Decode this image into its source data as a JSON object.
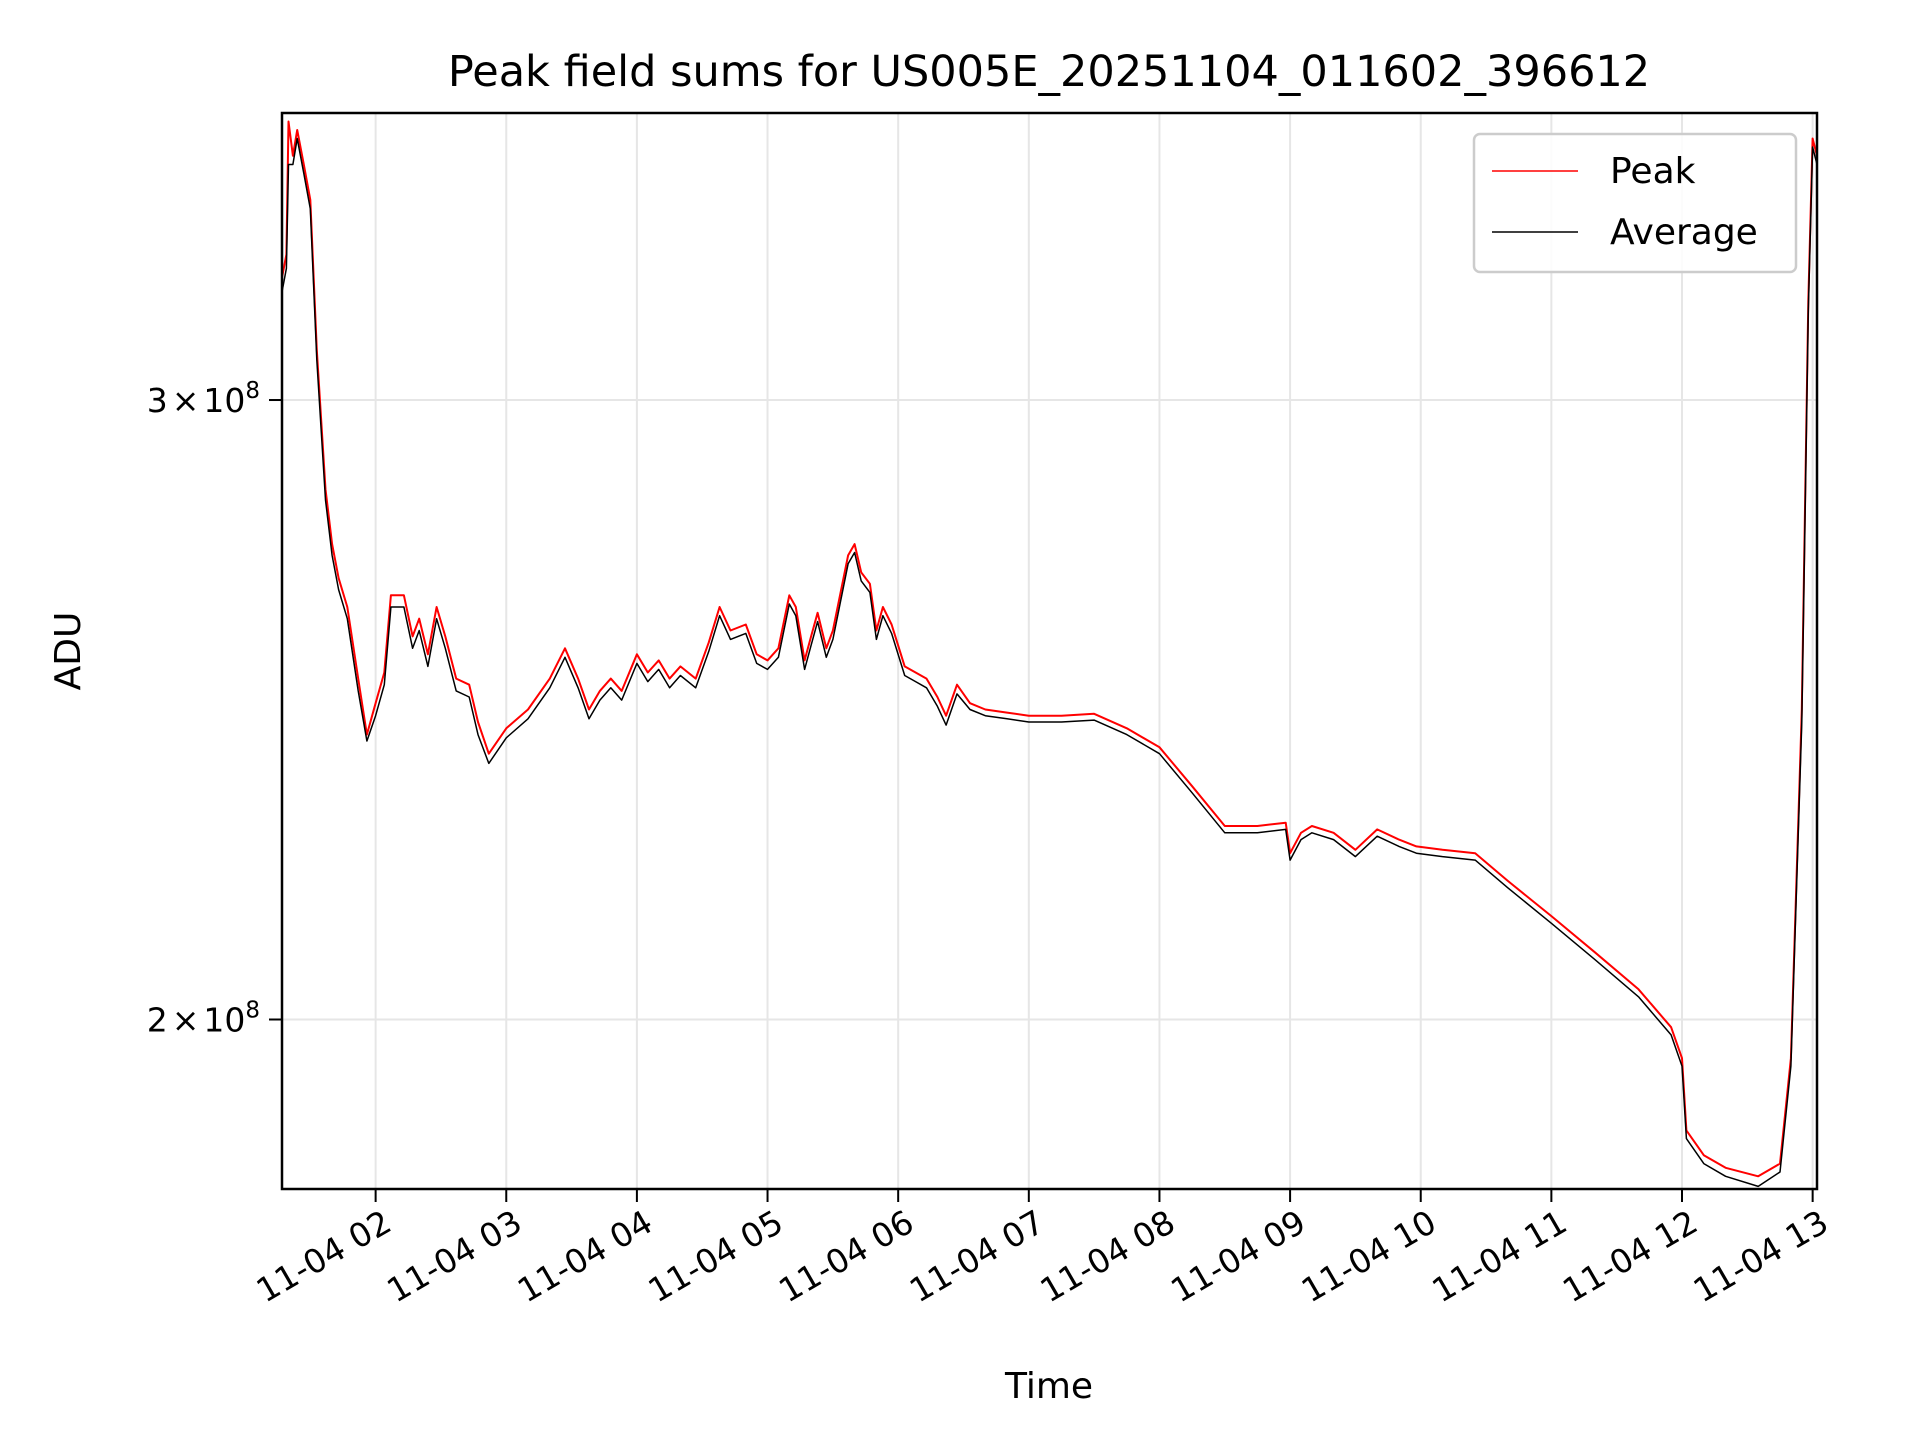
{
  "chart_data": {
    "type": "line",
    "title": "Peak field sums for US005E_20251104_011602_396612",
    "xlabel": "Time",
    "ylabel": "ADU",
    "yscale": "log",
    "xlim": [
      "2025-11-04 01:17",
      "2025-11-04 13:02"
    ],
    "ylim": [
      179000000,
      362000000
    ],
    "grid": true,
    "legend": "top-right",
    "x_ticks": [
      {
        "value": "2025-11-04 02:00",
        "label": "11-04 02"
      },
      {
        "value": "2025-11-04 03:00",
        "label": "11-04 03"
      },
      {
        "value": "2025-11-04 04:00",
        "label": "11-04 04"
      },
      {
        "value": "2025-11-04 05:00",
        "label": "11-04 05"
      },
      {
        "value": "2025-11-04 06:00",
        "label": "11-04 06"
      },
      {
        "value": "2025-11-04 07:00",
        "label": "11-04 07"
      },
      {
        "value": "2025-11-04 08:00",
        "label": "11-04 08"
      },
      {
        "value": "2025-11-04 09:00",
        "label": "11-04 09"
      },
      {
        "value": "2025-11-04 10:00",
        "label": "11-04 10"
      },
      {
        "value": "2025-11-04 11:00",
        "label": "11-04 11"
      },
      {
        "value": "2025-11-04 12:00",
        "label": "11-04 12"
      },
      {
        "value": "2025-11-04 13:00",
        "label": "11-04 13"
      }
    ],
    "y_ticks": [
      {
        "value": 200000000,
        "mantissa": "2",
        "times": "×",
        "base": "10",
        "exp": "8"
      },
      {
        "value": 300000000,
        "mantissa": "3",
        "times": "×",
        "base": "10",
        "exp": "8"
      }
    ],
    "series": [
      {
        "name": "Peak",
        "color": "#ff0000",
        "points": [
          [
            "2025-11-04 01:17",
            325000000
          ],
          [
            "2025-11-04 01:19",
            330000000
          ],
          [
            "2025-11-04 01:20",
            360000000
          ],
          [
            "2025-11-04 01:22",
            352000000
          ],
          [
            "2025-11-04 01:24",
            358000000
          ],
          [
            "2025-11-04 01:27",
            350000000
          ],
          [
            "2025-11-04 01:30",
            342000000
          ],
          [
            "2025-11-04 01:33",
            310000000
          ],
          [
            "2025-11-04 01:37",
            283000000
          ],
          [
            "2025-11-04 01:40",
            273000000
          ],
          [
            "2025-11-04 01:43",
            267000000
          ],
          [
            "2025-11-04 01:47",
            262000000
          ],
          [
            "2025-11-04 01:52",
            250000000
          ],
          [
            "2025-11-04 01:56",
            241000000
          ],
          [
            "2025-11-04 02:00",
            246000000
          ],
          [
            "2025-11-04 02:04",
            251000000
          ],
          [
            "2025-11-04 02:07",
            264000000
          ],
          [
            "2025-11-04 02:13",
            264000000
          ],
          [
            "2025-11-04 02:17",
            257000000
          ],
          [
            "2025-11-04 02:20",
            260000000
          ],
          [
            "2025-11-04 02:24",
            254000000
          ],
          [
            "2025-11-04 02:28",
            262000000
          ],
          [
            "2025-11-04 02:32",
            257000000
          ],
          [
            "2025-11-04 02:37",
            250000000
          ],
          [
            "2025-11-04 02:43",
            249000000
          ],
          [
            "2025-11-04 02:47",
            243000000
          ],
          [
            "2025-11-04 02:52",
            238000000
          ],
          [
            "2025-11-04 03:00",
            242000000
          ],
          [
            "2025-11-04 03:10",
            245000000
          ],
          [
            "2025-11-04 03:20",
            250000000
          ],
          [
            "2025-11-04 03:27",
            255000000
          ],
          [
            "2025-11-04 03:33",
            250000000
          ],
          [
            "2025-11-04 03:38",
            245000000
          ],
          [
            "2025-11-04 03:43",
            248000000
          ],
          [
            "2025-11-04 03:48",
            250000000
          ],
          [
            "2025-11-04 03:53",
            248000000
          ],
          [
            "2025-11-04 04:00",
            254000000
          ],
          [
            "2025-11-04 04:05",
            251000000
          ],
          [
            "2025-11-04 04:10",
            253000000
          ],
          [
            "2025-11-04 04:15",
            250000000
          ],
          [
            "2025-11-04 04:20",
            252000000
          ],
          [
            "2025-11-04 04:27",
            250000000
          ],
          [
            "2025-11-04 04:33",
            256000000
          ],
          [
            "2025-11-04 04:38",
            262000000
          ],
          [
            "2025-11-04 04:43",
            258000000
          ],
          [
            "2025-11-04 04:50",
            259000000
          ],
          [
            "2025-11-04 04:55",
            254000000
          ],
          [
            "2025-11-04 05:00",
            253000000
          ],
          [
            "2025-11-04 05:05",
            255000000
          ],
          [
            "2025-11-04 05:10",
            264000000
          ],
          [
            "2025-11-04 05:13",
            262000000
          ],
          [
            "2025-11-04 05:17",
            253000000
          ],
          [
            "2025-11-04 05:20",
            257000000
          ],
          [
            "2025-11-04 05:23",
            261000000
          ],
          [
            "2025-11-04 05:27",
            255000000
          ],
          [
            "2025-11-04 05:30",
            258000000
          ],
          [
            "2025-11-04 05:37",
            271000000
          ],
          [
            "2025-11-04 05:40",
            273000000
          ],
          [
            "2025-11-04 05:43",
            268000000
          ],
          [
            "2025-11-04 05:47",
            266000000
          ],
          [
            "2025-11-04 05:50",
            258000000
          ],
          [
            "2025-11-04 05:53",
            262000000
          ],
          [
            "2025-11-04 05:57",
            259000000
          ],
          [
            "2025-11-04 06:03",
            252000000
          ],
          [
            "2025-11-04 06:08",
            251000000
          ],
          [
            "2025-11-04 06:13",
            250000000
          ],
          [
            "2025-11-04 06:18",
            247000000
          ],
          [
            "2025-11-04 06:22",
            244000000
          ],
          [
            "2025-11-04 06:27",
            249000000
          ],
          [
            "2025-11-04 06:33",
            246000000
          ],
          [
            "2025-11-04 06:40",
            245000000
          ],
          [
            "2025-11-04 06:50",
            244500000
          ],
          [
            "2025-11-04 07:00",
            244000000
          ],
          [
            "2025-11-04 07:15",
            244000000
          ],
          [
            "2025-11-04 07:30",
            244300000
          ],
          [
            "2025-11-04 07:45",
            242000000
          ],
          [
            "2025-11-04 08:00",
            239000000
          ],
          [
            "2025-11-04 08:15",
            233000000
          ],
          [
            "2025-11-04 08:30",
            227000000
          ],
          [
            "2025-11-04 08:45",
            227000000
          ],
          [
            "2025-11-04 08:58",
            227500000
          ],
          [
            "2025-11-04 09:00",
            223000000
          ],
          [
            "2025-11-04 09:05",
            226000000
          ],
          [
            "2025-11-04 09:10",
            227000000
          ],
          [
            "2025-11-04 09:20",
            226000000
          ],
          [
            "2025-11-04 09:30",
            223500000
          ],
          [
            "2025-11-04 09:40",
            226500000
          ],
          [
            "2025-11-04 09:50",
            225000000
          ],
          [
            "2025-11-04 09:58",
            224000000
          ],
          [
            "2025-11-04 10:10",
            223500000
          ],
          [
            "2025-11-04 10:25",
            223000000
          ],
          [
            "2025-11-04 10:40",
            219000000
          ],
          [
            "2025-11-04 11:00",
            214000000
          ],
          [
            "2025-11-04 11:20",
            209000000
          ],
          [
            "2025-11-04 11:40",
            204000000
          ],
          [
            "2025-11-04 11:55",
            199000000
          ],
          [
            "2025-11-04 12:00",
            195000000
          ],
          [
            "2025-11-04 12:02",
            186000000
          ],
          [
            "2025-11-04 12:10",
            183000000
          ],
          [
            "2025-11-04 12:20",
            181500000
          ],
          [
            "2025-11-04 12:35",
            180500000
          ],
          [
            "2025-11-04 12:45",
            182000000
          ],
          [
            "2025-11-04 12:50",
            195000000
          ],
          [
            "2025-11-04 12:55",
            245000000
          ],
          [
            "2025-11-04 12:58",
            320000000
          ],
          [
            "2025-11-04 13:00",
            356000000
          ],
          [
            "2025-11-04 13:02",
            352000000
          ]
        ]
      },
      {
        "name": "Average",
        "color": "#000000",
        "points": [
          [
            "2025-11-04 01:17",
            322000000
          ],
          [
            "2025-11-04 01:19",
            327000000
          ],
          [
            "2025-11-04 01:20",
            350000000
          ],
          [
            "2025-11-04 01:22",
            350000000
          ],
          [
            "2025-11-04 01:24",
            356000000
          ],
          [
            "2025-11-04 01:27",
            348000000
          ],
          [
            "2025-11-04 01:30",
            340000000
          ],
          [
            "2025-11-04 01:33",
            308000000
          ],
          [
            "2025-11-04 01:37",
            281000000
          ],
          [
            "2025-11-04 01:40",
            271000000
          ],
          [
            "2025-11-04 01:43",
            265000000
          ],
          [
            "2025-11-04 01:47",
            260000000
          ],
          [
            "2025-11-04 01:52",
            248000000
          ],
          [
            "2025-11-04 01:56",
            240000000
          ],
          [
            "2025-11-04 02:00",
            244000000
          ],
          [
            "2025-11-04 02:04",
            249000000
          ],
          [
            "2025-11-04 02:07",
            262000000
          ],
          [
            "2025-11-04 02:13",
            262000000
          ],
          [
            "2025-11-04 02:17",
            255000000
          ],
          [
            "2025-11-04 02:20",
            258000000
          ],
          [
            "2025-11-04 02:24",
            252000000
          ],
          [
            "2025-11-04 02:28",
            260000000
          ],
          [
            "2025-11-04 02:32",
            255000000
          ],
          [
            "2025-11-04 02:37",
            248000000
          ],
          [
            "2025-11-04 02:43",
            247000000
          ],
          [
            "2025-11-04 02:47",
            241000000
          ],
          [
            "2025-11-04 02:52",
            236500000
          ],
          [
            "2025-11-04 03:00",
            240500000
          ],
          [
            "2025-11-04 03:10",
            243500000
          ],
          [
            "2025-11-04 03:20",
            248500000
          ],
          [
            "2025-11-04 03:27",
            253500000
          ],
          [
            "2025-11-04 03:33",
            248500000
          ],
          [
            "2025-11-04 03:38",
            243500000
          ],
          [
            "2025-11-04 03:43",
            246500000
          ],
          [
            "2025-11-04 03:48",
            248500000
          ],
          [
            "2025-11-04 03:53",
            246500000
          ],
          [
            "2025-11-04 04:00",
            252500000
          ],
          [
            "2025-11-04 04:05",
            249500000
          ],
          [
            "2025-11-04 04:10",
            251500000
          ],
          [
            "2025-11-04 04:15",
            248500000
          ],
          [
            "2025-11-04 04:20",
            250500000
          ],
          [
            "2025-11-04 04:27",
            248500000
          ],
          [
            "2025-11-04 04:33",
            254500000
          ],
          [
            "2025-11-04 04:38",
            260500000
          ],
          [
            "2025-11-04 04:43",
            256500000
          ],
          [
            "2025-11-04 04:50",
            257500000
          ],
          [
            "2025-11-04 04:55",
            252500000
          ],
          [
            "2025-11-04 05:00",
            251500000
          ],
          [
            "2025-11-04 05:05",
            253500000
          ],
          [
            "2025-11-04 05:10",
            262500000
          ],
          [
            "2025-11-04 05:13",
            260500000
          ],
          [
            "2025-11-04 05:17",
            251500000
          ],
          [
            "2025-11-04 05:20",
            255500000
          ],
          [
            "2025-11-04 05:23",
            259500000
          ],
          [
            "2025-11-04 05:27",
            253500000
          ],
          [
            "2025-11-04 05:30",
            256500000
          ],
          [
            "2025-11-04 05:37",
            269500000
          ],
          [
            "2025-11-04 05:40",
            271500000
          ],
          [
            "2025-11-04 05:43",
            266500000
          ],
          [
            "2025-11-04 05:47",
            264500000
          ],
          [
            "2025-11-04 05:50",
            256500000
          ],
          [
            "2025-11-04 05:53",
            260500000
          ],
          [
            "2025-11-04 05:57",
            257500000
          ],
          [
            "2025-11-04 06:03",
            250500000
          ],
          [
            "2025-11-04 06:08",
            249500000
          ],
          [
            "2025-11-04 06:13",
            248500000
          ],
          [
            "2025-11-04 06:18",
            245500000
          ],
          [
            "2025-11-04 06:22",
            242500000
          ],
          [
            "2025-11-04 06:27",
            247500000
          ],
          [
            "2025-11-04 06:33",
            245000000
          ],
          [
            "2025-11-04 06:40",
            244000000
          ],
          [
            "2025-11-04 06:50",
            243500000
          ],
          [
            "2025-11-04 07:00",
            243000000
          ],
          [
            "2025-11-04 07:15",
            243000000
          ],
          [
            "2025-11-04 07:30",
            243300000
          ],
          [
            "2025-11-04 07:45",
            241000000
          ],
          [
            "2025-11-04 08:00",
            238000000
          ],
          [
            "2025-11-04 08:15",
            232000000
          ],
          [
            "2025-11-04 08:30",
            226000000
          ],
          [
            "2025-11-04 08:45",
            226000000
          ],
          [
            "2025-11-04 08:58",
            226500000
          ],
          [
            "2025-11-04 09:00",
            222000000
          ],
          [
            "2025-11-04 09:05",
            225000000
          ],
          [
            "2025-11-04 09:10",
            226000000
          ],
          [
            "2025-11-04 09:20",
            225000000
          ],
          [
            "2025-11-04 09:30",
            222500000
          ],
          [
            "2025-11-04 09:40",
            225500000
          ],
          [
            "2025-11-04 09:50",
            224000000
          ],
          [
            "2025-11-04 09:58",
            223000000
          ],
          [
            "2025-11-04 10:10",
            222500000
          ],
          [
            "2025-11-04 10:25",
            222000000
          ],
          [
            "2025-11-04 10:40",
            218000000
          ],
          [
            "2025-11-04 11:00",
            213000000
          ],
          [
            "2025-11-04 11:20",
            208000000
          ],
          [
            "2025-11-04 11:40",
            203000000
          ],
          [
            "2025-11-04 11:55",
            198000000
          ],
          [
            "2025-11-04 12:00",
            194000000
          ],
          [
            "2025-11-04 12:02",
            185000000
          ],
          [
            "2025-11-04 12:10",
            182000000
          ],
          [
            "2025-11-04 12:20",
            180500000
          ],
          [
            "2025-11-04 12:35",
            179300000
          ],
          [
            "2025-11-04 12:45",
            181000000
          ],
          [
            "2025-11-04 12:50",
            194000000
          ],
          [
            "2025-11-04 12:55",
            243000000
          ],
          [
            "2025-11-04 12:58",
            318000000
          ],
          [
            "2025-11-04 13:00",
            354000000
          ],
          [
            "2025-11-04 13:02",
            350000000
          ]
        ]
      }
    ]
  }
}
